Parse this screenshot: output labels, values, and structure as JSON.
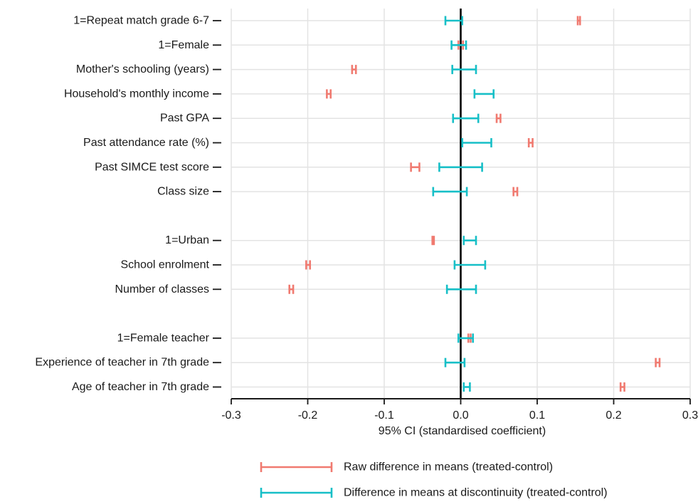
{
  "chart_data": {
    "type": "errorbar",
    "xlabel": "95% CI (standardised coefficient)",
    "xlim": [
      -0.3,
      0.3
    ],
    "x_ticks": [
      -0.3,
      -0.2,
      -0.1,
      0.0,
      0.1,
      0.2,
      0.3
    ],
    "x_tick_labels": [
      "-0.3",
      "-0.2",
      "-0.1",
      "0.0",
      "0.1",
      "0.2",
      "0.3"
    ],
    "grid": true,
    "zero_line": true,
    "legend_position": "bottom",
    "rows": [
      {
        "label": "1=Repeat match grade 6-7",
        "slot": 0
      },
      {
        "label": "1=Female",
        "slot": 1
      },
      {
        "label": "Mother's schooling (years)",
        "slot": 2
      },
      {
        "label": "Household's monthly income",
        "slot": 3
      },
      {
        "label": "Past GPA",
        "slot": 4
      },
      {
        "label": "Past attendance rate (%)",
        "slot": 5
      },
      {
        "label": "Past SIMCE test score",
        "slot": 6
      },
      {
        "label": "Class size",
        "slot": 7
      },
      {
        "label": "1=Urban",
        "slot": 9
      },
      {
        "label": "School enrolment",
        "slot": 10
      },
      {
        "label": "Number of classes",
        "slot": 11
      },
      {
        "label": "1=Female teacher",
        "slot": 13
      },
      {
        "label": "Experience of teacher in 7th grade",
        "slot": 14
      },
      {
        "label": "Age of teacher in 7th grade",
        "slot": 15
      }
    ],
    "series": [
      {
        "name": "Raw difference in means (treated-control)",
        "color": "#f07a70",
        "intervals": [
          [
            0.153,
            0.156
          ],
          [
            -0.003,
            0.003
          ],
          [
            -0.142,
            -0.137
          ],
          [
            -0.175,
            -0.17
          ],
          [
            0.047,
            0.052
          ],
          [
            0.089,
            0.094
          ],
          [
            -0.065,
            -0.054
          ],
          [
            0.069,
            0.074
          ],
          [
            -0.037,
            -0.035
          ],
          [
            -0.202,
            -0.197
          ],
          [
            -0.224,
            -0.219
          ],
          [
            0.01,
            0.013
          ],
          [
            0.255,
            0.26
          ],
          [
            0.209,
            0.214
          ]
        ]
      },
      {
        "name": "Difference in means at discontinuity (treated-control)",
        "color": "#17bfc7",
        "intervals": [
          [
            -0.02,
            0.002
          ],
          [
            -0.012,
            0.007
          ],
          [
            -0.011,
            0.02
          ],
          [
            0.018,
            0.043
          ],
          [
            -0.01,
            0.023
          ],
          [
            0.002,
            0.04
          ],
          [
            -0.028,
            0.028
          ],
          [
            -0.036,
            0.008
          ],
          [
            0.004,
            0.02
          ],
          [
            -0.008,
            0.032
          ],
          [
            -0.018,
            0.02
          ],
          [
            -0.003,
            0.016
          ],
          [
            -0.02,
            0.005
          ],
          [
            0.004,
            0.012
          ]
        ]
      }
    ]
  }
}
